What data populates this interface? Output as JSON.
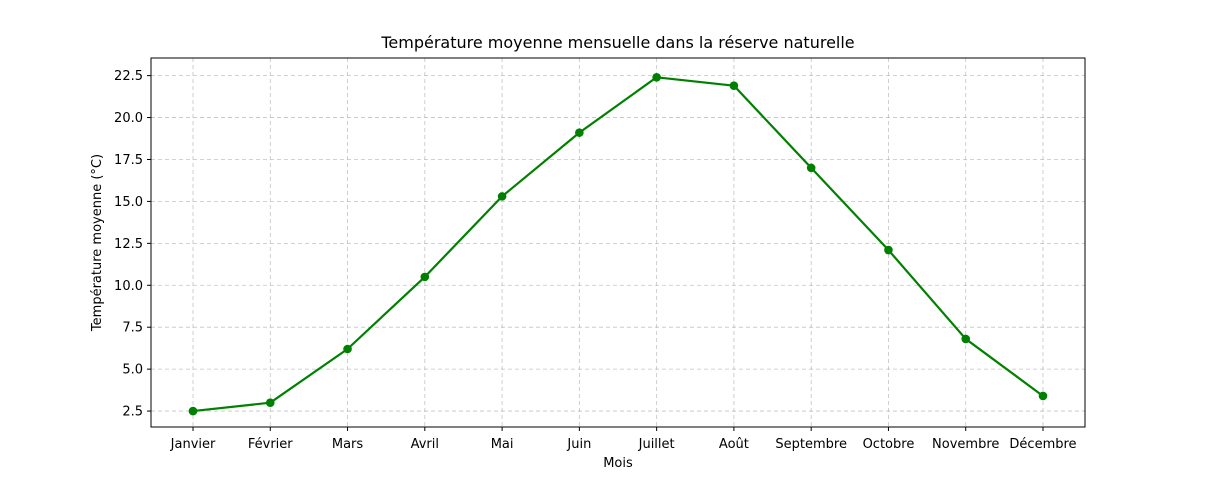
{
  "chart_data": {
    "type": "line",
    "title": "Température moyenne mensuelle dans la réserve naturelle",
    "xlabel": "Mois",
    "ylabel": "Température moyenne (°C)",
    "categories": [
      "Janvier",
      "Février",
      "Mars",
      "Avril",
      "Mai",
      "Juin",
      "Juillet",
      "Août",
      "Septembre",
      "Octobre",
      "Novembre",
      "Décembre"
    ],
    "series": [
      {
        "values": [
          2.5,
          3.0,
          6.2,
          10.5,
          15.3,
          19.1,
          22.4,
          21.9,
          17.0,
          12.1,
          6.8,
          3.4
        ],
        "color": "#008000"
      }
    ],
    "ylim": [
      1.55,
      23.55
    ],
    "yticks": [
      "2.5",
      "5.0",
      "7.5",
      "10.0",
      "12.5",
      "15.0",
      "17.5",
      "20.0",
      "22.5"
    ],
    "grid": true,
    "marker": "circle"
  }
}
